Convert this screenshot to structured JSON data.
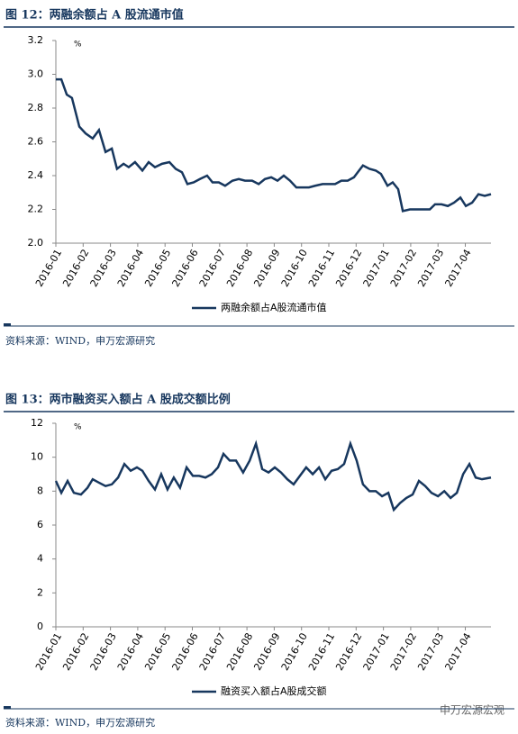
{
  "chart_data": [
    {
      "type": "line",
      "title": "图 12：两融余额占 A 股流通市值",
      "unit": "%",
      "source": "资料来源：WIND，申万宏源研究",
      "series": [
        {
          "name": "两融余额占A股流通市值",
          "color": "#17375e",
          "x": [
            0,
            0.2,
            0.4,
            0.59,
            0.86,
            1.09,
            1.35,
            1.58,
            1.82,
            2.05,
            2.24,
            2.48,
            2.67,
            2.9,
            3.17,
            3.4,
            3.63,
            3.89,
            4.16,
            4.39,
            4.62,
            4.82,
            5.05,
            5.28,
            5.54,
            5.74,
            5.97,
            6.2,
            6.47,
            6.7,
            6.93,
            7.19,
            7.43,
            7.66,
            7.89,
            8.12,
            8.35,
            8.58,
            8.81,
            9.04,
            9.27,
            9.5,
            9.77,
            10,
            10.23,
            10.46,
            10.69,
            10.92,
            11.06,
            11.25,
            11.49,
            11.72,
            11.91,
            12.15,
            12.34,
            12.54,
            12.71,
            12.97,
            13.2,
            13.47,
            13.7,
            13.89,
            14.13,
            14.36,
            14.59,
            14.82,
            15.02,
            15.25,
            15.48,
            15.71,
            15.94
          ],
          "values": [
            2.97,
            2.97,
            2.88,
            2.86,
            2.69,
            2.65,
            2.62,
            2.67,
            2.54,
            2.56,
            2.44,
            2.47,
            2.45,
            2.48,
            2.43,
            2.48,
            2.45,
            2.47,
            2.48,
            2.44,
            2.42,
            2.35,
            2.36,
            2.38,
            2.4,
            2.36,
            2.36,
            2.34,
            2.37,
            2.38,
            2.37,
            2.37,
            2.35,
            2.38,
            2.39,
            2.37,
            2.4,
            2.37,
            2.33,
            2.33,
            2.33,
            2.34,
            2.35,
            2.35,
            2.35,
            2.37,
            2.37,
            2.39,
            2.42,
            2.46,
            2.44,
            2.43,
            2.41,
            2.34,
            2.36,
            2.32,
            2.19,
            2.2,
            2.2,
            2.2,
            2.2,
            2.23,
            2.23,
            2.22,
            2.24,
            2.27,
            2.22,
            2.24,
            2.29,
            2.28,
            2.29
          ]
        }
      ],
      "xlim": [
        0,
        15.94
      ],
      "xticks": [
        {
          "value": 0,
          "label": "2016-01"
        },
        {
          "value": 1,
          "label": "2016-02"
        },
        {
          "value": 2,
          "label": "2016-03"
        },
        {
          "value": 3,
          "label": "2016-04"
        },
        {
          "value": 4,
          "label": "2016-05"
        },
        {
          "value": 5,
          "label": "2016-06"
        },
        {
          "value": 6,
          "label": "2016-07"
        },
        {
          "value": 7,
          "label": "2016-08"
        },
        {
          "value": 8,
          "label": "2016-09"
        },
        {
          "value": 9,
          "label": "2016-10"
        },
        {
          "value": 10,
          "label": "2016-11"
        },
        {
          "value": 11,
          "label": "2016-12"
        },
        {
          "value": 12,
          "label": "2017-01"
        },
        {
          "value": 13,
          "label": "2017-02"
        },
        {
          "value": 14,
          "label": "2017-03"
        },
        {
          "value": 15,
          "label": "2017-04"
        }
      ],
      "ylim": [
        2.0,
        3.2
      ],
      "yticks": [
        {
          "value": 2.0,
          "label": "2.0"
        },
        2.2,
        2.4,
        2.6,
        2.8,
        {
          "value": 3.0,
          "label": "3.0"
        },
        3.2
      ]
    },
    {
      "type": "line",
      "title": "图 13：两市融资买入额占 A 股成交额比例",
      "unit": "%",
      "source": "资料来源：WIND，申万宏源研究",
      "series": [
        {
          "name": "融资买入额占A股成交额",
          "color": "#17375e",
          "x": [
            0,
            0.2,
            0.43,
            0.66,
            0.92,
            1.16,
            1.35,
            1.58,
            1.82,
            2.05,
            2.28,
            2.51,
            2.74,
            2.97,
            3.17,
            3.4,
            3.63,
            3.86,
            4.09,
            4.32,
            4.55,
            4.79,
            5.02,
            5.25,
            5.48,
            5.71,
            5.94,
            6.14,
            6.37,
            6.6,
            6.86,
            7.1,
            7.33,
            7.56,
            7.79,
            8.02,
            8.25,
            8.48,
            8.71,
            8.94,
            9.17,
            9.41,
            9.64,
            9.87,
            10.1,
            10.33,
            10.56,
            10.79,
            11.02,
            11.25,
            11.49,
            11.72,
            11.95,
            12.18,
            12.38,
            12.61,
            12.84,
            13.07,
            13.3,
            13.53,
            13.76,
            14,
            14.23,
            14.46,
            14.69,
            14.92,
            15.15,
            15.38,
            15.61,
            15.94
          ],
          "values": [
            8.6,
            7.9,
            8.6,
            7.9,
            7.8,
            8.2,
            8.7,
            8.5,
            8.3,
            8.4,
            8.8,
            9.6,
            9.2,
            9.4,
            9.2,
            8.6,
            8.1,
            9.0,
            8.1,
            8.8,
            8.2,
            9.4,
            8.9,
            8.9,
            8.8,
            9.0,
            9.4,
            10.2,
            9.8,
            9.8,
            9.1,
            9.8,
            10.8,
            9.3,
            9.1,
            9.4,
            9.1,
            8.7,
            8.4,
            8.9,
            9.4,
            9.0,
            9.4,
            8.7,
            9.2,
            9.3,
            9.6,
            10.8,
            9.8,
            8.4,
            8.0,
            8.0,
            7.7,
            7.9,
            6.9,
            7.3,
            7.6,
            7.8,
            8.6,
            8.3,
            7.9,
            7.7,
            8.0,
            7.6,
            7.9,
            9.0,
            9.6,
            8.8,
            8.7,
            8.8
          ]
        }
      ],
      "xlim": [
        0,
        15.94
      ],
      "xticks": [
        {
          "value": 0,
          "label": "2016-01"
        },
        {
          "value": 1,
          "label": "2016-02"
        },
        {
          "value": 2,
          "label": "2016-03"
        },
        {
          "value": 3,
          "label": "2016-04"
        },
        {
          "value": 4,
          "label": "2016-05"
        },
        {
          "value": 5,
          "label": "2016-06"
        },
        {
          "value": 6,
          "label": "2016-07"
        },
        {
          "value": 7,
          "label": "2016-08"
        },
        {
          "value": 8,
          "label": "2016-09"
        },
        {
          "value": 9,
          "label": "2016-10"
        },
        {
          "value": 10,
          "label": "2016-11"
        },
        {
          "value": 11,
          "label": "2016-12"
        },
        {
          "value": 12,
          "label": "2017-01"
        },
        {
          "value": 13,
          "label": "2017-02"
        },
        {
          "value": 14,
          "label": "2017-03"
        },
        {
          "value": 15,
          "label": "2017-04"
        }
      ],
      "ylim": [
        0,
        12
      ],
      "yticks": [
        0,
        2,
        4,
        6,
        8,
        10,
        12
      ]
    }
  ],
  "watermark": "申万宏源宏观"
}
